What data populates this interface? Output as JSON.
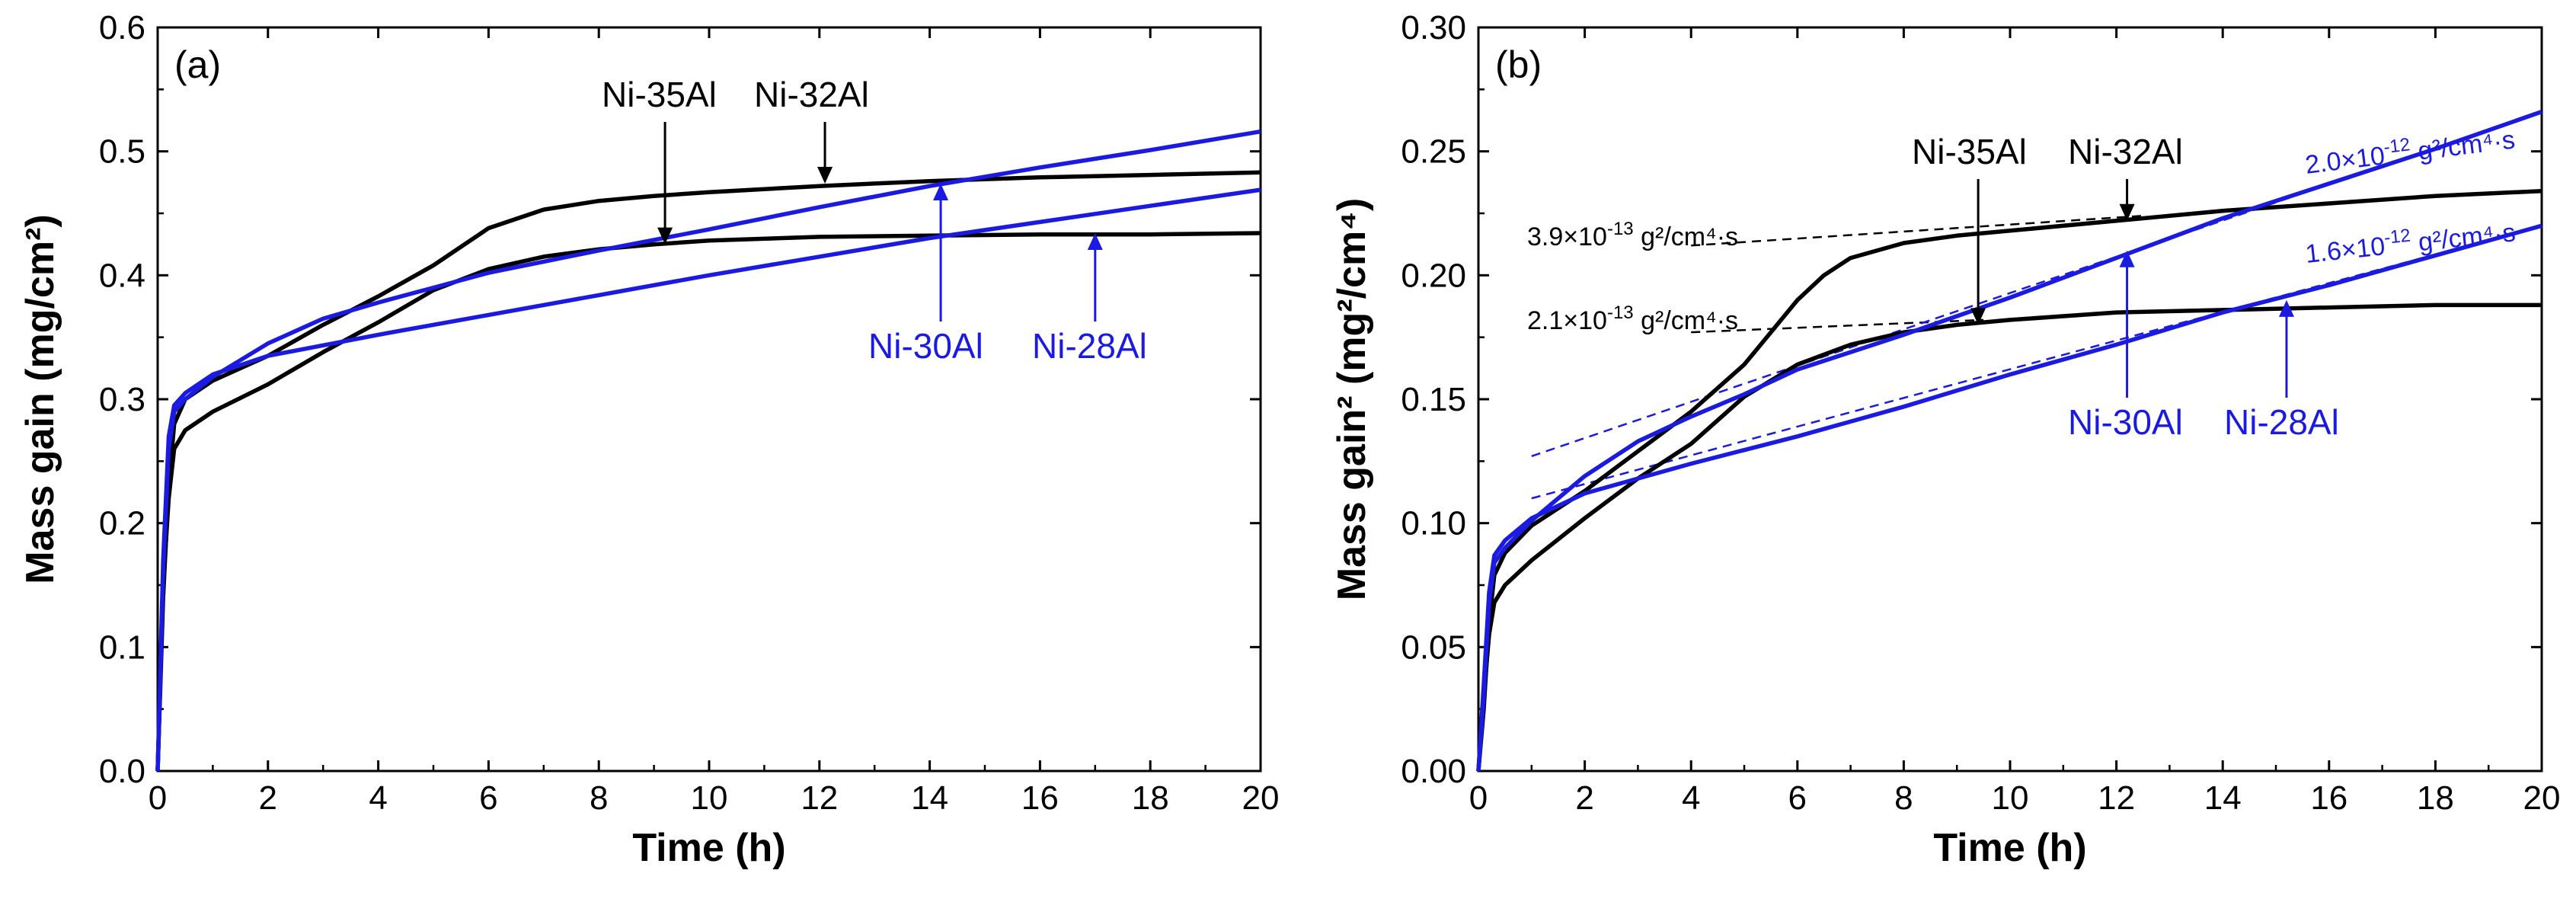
{
  "chart_data": [
    {
      "type": "line",
      "panel_label": "(a)",
      "xlabel": "Time (h)",
      "ylabel": "Mass gain (mg/cm²)",
      "xlim": [
        0,
        20
      ],
      "ylim": [
        0,
        0.6
      ],
      "xticks": [
        "0",
        "2",
        "4",
        "6",
        "8",
        "10",
        "12",
        "14",
        "16",
        "18",
        "20"
      ],
      "yticks": [
        "0.0",
        "0.1",
        "0.2",
        "0.3",
        "0.4",
        "0.5",
        "0.6"
      ],
      "series": [
        {
          "name": "Ni-35Al",
          "color": "#000000",
          "x": [
            0,
            0.1,
            0.2,
            0.3,
            0.5,
            1,
            2,
            3,
            4,
            5,
            6,
            7,
            8,
            9,
            10,
            12,
            14,
            16,
            18,
            20
          ],
          "y": [
            0,
            0.15,
            0.22,
            0.26,
            0.275,
            0.29,
            0.312,
            0.338,
            0.362,
            0.388,
            0.405,
            0.415,
            0.421,
            0.425,
            0.428,
            0.431,
            0.432,
            0.433,
            0.433,
            0.434
          ]
        },
        {
          "name": "Ni-32Al",
          "color": "#000000",
          "x": [
            0,
            0.1,
            0.2,
            0.3,
            0.5,
            1,
            2,
            3,
            4,
            5,
            6,
            7,
            8,
            9,
            10,
            12,
            14,
            16,
            18,
            20
          ],
          "y": [
            0,
            0.14,
            0.23,
            0.28,
            0.3,
            0.315,
            0.335,
            0.36,
            0.383,
            0.408,
            0.438,
            0.453,
            0.46,
            0.464,
            0.467,
            0.472,
            0.476,
            0.479,
            0.481,
            0.483
          ]
        },
        {
          "name": "Ni-30Al",
          "color": "#1a1ae0",
          "x": [
            0,
            0.1,
            0.2,
            0.3,
            0.5,
            1,
            2,
            3,
            4,
            5,
            6,
            7,
            8,
            10,
            12,
            14,
            16,
            18,
            20
          ],
          "y": [
            0,
            0.16,
            0.26,
            0.29,
            0.3,
            0.318,
            0.345,
            0.365,
            0.378,
            0.39,
            0.402,
            0.411,
            0.42,
            0.437,
            0.455,
            0.472,
            0.487,
            0.501,
            0.516
          ]
        },
        {
          "name": "Ni-28Al",
          "color": "#1a1ae0",
          "x": [
            0,
            0.1,
            0.2,
            0.3,
            0.5,
            1,
            2,
            4,
            6,
            8,
            10,
            12,
            14,
            16,
            18,
            20
          ],
          "y": [
            0,
            0.17,
            0.27,
            0.295,
            0.305,
            0.32,
            0.335,
            0.352,
            0.368,
            0.384,
            0.4,
            0.415,
            0.43,
            0.443,
            0.456,
            0.469
          ]
        }
      ],
      "annotations": [
        {
          "text": "Ni-35Al",
          "color": "#000000",
          "x": 9.2,
          "y": 0.425
        },
        {
          "text": "Ni-32Al",
          "color": "#000000",
          "x": 12.1,
          "y": 0.474
        },
        {
          "text": "Ni-30Al",
          "color": "#1a1ae0",
          "x": 14.2,
          "y": 0.474
        },
        {
          "text": "Ni-28Al",
          "color": "#1a1ae0",
          "x": 17.0,
          "y": 0.434
        }
      ]
    },
    {
      "type": "line",
      "panel_label": "(b)",
      "xlabel": "Time (h)",
      "ylabel": "Mass gain² (mg²/cm⁴)",
      "xlim": [
        0,
        20
      ],
      "ylim": [
        0,
        0.3
      ],
      "xticks": [
        "0",
        "2",
        "4",
        "6",
        "8",
        "10",
        "12",
        "14",
        "16",
        "18",
        "20"
      ],
      "yticks": [
        "0.00",
        "0.05",
        "0.10",
        "0.15",
        "0.20",
        "0.25",
        "0.30"
      ],
      "series": [
        {
          "name": "Ni-35Al",
          "color": "#000000",
          "x": [
            0,
            0.1,
            0.2,
            0.3,
            0.5,
            1,
            2,
            3,
            4,
            5,
            6,
            7,
            8,
            9,
            10,
            12,
            14,
            16,
            18,
            20
          ],
          "y": [
            0,
            0.03,
            0.055,
            0.068,
            0.075,
            0.085,
            0.102,
            0.118,
            0.132,
            0.151,
            0.164,
            0.172,
            0.177,
            0.18,
            0.182,
            0.185,
            0.186,
            0.187,
            0.188,
            0.188
          ]
        },
        {
          "name": "Ni-32Al",
          "color": "#000000",
          "x": [
            0,
            0.1,
            0.2,
            0.3,
            0.5,
            1,
            2,
            3,
            4,
            5,
            5.5,
            6,
            6.5,
            7,
            8,
            9,
            10,
            12,
            14,
            16,
            18,
            20
          ],
          "y": [
            0,
            0.025,
            0.06,
            0.079,
            0.088,
            0.099,
            0.113,
            0.129,
            0.145,
            0.164,
            0.177,
            0.19,
            0.2,
            0.207,
            0.213,
            0.216,
            0.218,
            0.222,
            0.226,
            0.229,
            0.232,
            0.234
          ]
        },
        {
          "name": "Ni-30Al",
          "color": "#1a1ae0",
          "x": [
            0,
            0.1,
            0.2,
            0.3,
            0.5,
            1,
            2,
            3,
            4,
            5,
            6,
            7,
            8,
            10,
            12,
            14,
            16,
            18,
            20
          ],
          "y": [
            0,
            0.03,
            0.068,
            0.084,
            0.09,
            0.101,
            0.119,
            0.133,
            0.143,
            0.152,
            0.162,
            0.169,
            0.176,
            0.191,
            0.207,
            0.223,
            0.237,
            0.251,
            0.266
          ]
        },
        {
          "name": "Ni-28Al",
          "color": "#1a1ae0",
          "x": [
            0,
            0.1,
            0.2,
            0.3,
            0.5,
            1,
            2,
            4,
            6,
            8,
            10,
            12,
            14,
            16,
            18,
            20
          ],
          "y": [
            0,
            0.035,
            0.072,
            0.087,
            0.093,
            0.102,
            0.112,
            0.124,
            0.135,
            0.147,
            0.16,
            0.172,
            0.185,
            0.196,
            0.208,
            0.22
          ]
        }
      ],
      "fit_lines": [
        {
          "color": "#000000",
          "x": [
            4,
            12.5
          ],
          "y": [
            0.212,
            0.224
          ]
        },
        {
          "color": "#000000",
          "x": [
            4,
            9.5
          ],
          "y": [
            0.177,
            0.182
          ]
        },
        {
          "color": "#1a1ae0",
          "x": [
            1,
            20
          ],
          "y": [
            0.127,
            0.266
          ]
        },
        {
          "color": "#1a1ae0",
          "x": [
            1,
            20
          ],
          "y": [
            0.11,
            0.22
          ]
        }
      ],
      "annotations": [
        {
          "text": "Ni-35Al",
          "color": "#000000",
          "x": 9.4,
          "y": 0.18
        },
        {
          "text": "Ni-32Al",
          "color": "#000000",
          "x": 12.2,
          "y": 0.222
        },
        {
          "text": "Ni-30Al",
          "color": "#1a1ae0",
          "x": 12.2,
          "y": 0.21
        },
        {
          "text": "Ni-28Al",
          "color": "#1a1ae0",
          "x": 15.2,
          "y": 0.19
        }
      ],
      "rate_labels": [
        {
          "mantissa": "3.9×10",
          "exp": "-13",
          "unit": " g²/cm⁴·s",
          "color": "#000000"
        },
        {
          "mantissa": "2.1×10",
          "exp": "-13",
          "unit": " g²/cm⁴·s",
          "color": "#000000"
        },
        {
          "mantissa": "2.0×10",
          "exp": "-12",
          "unit": " g²/cm⁴·s",
          "color": "#1a1ae0"
        },
        {
          "mantissa": "1.6×10",
          "exp": "-12",
          "unit": " g²/cm⁴·s",
          "color": "#1a1ae0"
        }
      ]
    }
  ]
}
